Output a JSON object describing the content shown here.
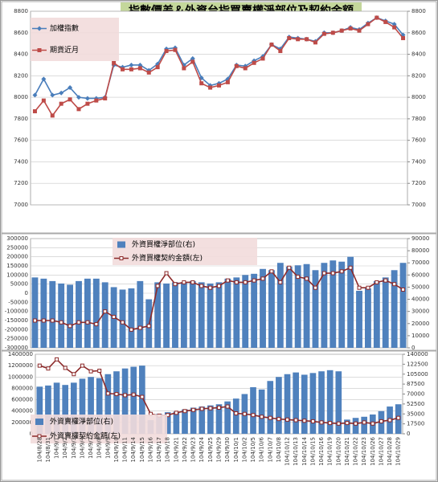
{
  "chart_data": [
    {
      "type": "line",
      "title": "指數價差＆外資台指買賣權淨部位及契約金額",
      "ylim": [
        7000,
        8800
      ],
      "yticks": [
        7000,
        7200,
        7400,
        7600,
        7800,
        8000,
        8200,
        8400,
        8600,
        8800
      ],
      "y2lim": [
        7000,
        8800
      ],
      "y2ticks": [
        7000,
        7200,
        7400,
        7600,
        7800,
        8000,
        8200,
        8400,
        8600,
        8800
      ],
      "grid": true,
      "series": [
        {
          "name": "加權指數",
          "color": "#4a7ebb",
          "marker": "diamond",
          "values": [
            8020,
            8170,
            8020,
            8040,
            8090,
            8000,
            7990,
            7990,
            8000,
            8300,
            8280,
            8300,
            8300,
            8250,
            8310,
            8450,
            8460,
            8300,
            8360,
            8180,
            8110,
            8130,
            8170,
            8300,
            8290,
            8340,
            8380,
            8490,
            8450,
            8560,
            8550,
            8540,
            8520,
            8600,
            8600,
            8620,
            8650,
            8630,
            8690,
            8740,
            8710,
            8680,
            8580
          ]
        },
        {
          "name": "期貨近月",
          "color": "#be4b48",
          "marker": "square",
          "values": [
            7870,
            7970,
            7830,
            7940,
            7980,
            7890,
            7940,
            7970,
            7990,
            8320,
            8260,
            8260,
            8270,
            8230,
            8280,
            8430,
            8440,
            8270,
            8330,
            8130,
            8090,
            8110,
            8140,
            8290,
            8270,
            8320,
            8360,
            8490,
            8430,
            8550,
            8540,
            8540,
            8510,
            8590,
            8600,
            8620,
            8640,
            8620,
            8680,
            8740,
            8700,
            8650,
            8550
          ]
        }
      ]
    },
    {
      "type": "combo",
      "ylim": [
        -300000,
        300000
      ],
      "yticks": [
        -300000,
        -250000,
        -200000,
        -150000,
        -100000,
        -50000,
        0,
        50000,
        100000,
        150000,
        200000,
        250000,
        300000
      ],
      "y2lim": [
        0,
        90000
      ],
      "y2ticks": [
        0,
        10000,
        20000,
        30000,
        40000,
        50000,
        60000,
        70000,
        80000,
        90000
      ],
      "grid": true,
      "series": [
        {
          "name": "外資買權淨部位(右)",
          "type": "bar",
          "axis": "y2",
          "color": "#4f81bd",
          "values": [
            58000,
            57000,
            55000,
            53000,
            52000,
            55000,
            57000,
            57000,
            54000,
            50000,
            48000,
            49000,
            55000,
            40000,
            54000,
            53000,
            54000,
            54000,
            55000,
            54000,
            53000,
            54000,
            57000,
            58000,
            60000,
            61000,
            65000,
            64000,
            70000,
            67000,
            68000,
            69000,
            64000,
            70000,
            72000,
            71000,
            75000,
            47000,
            49000,
            55000,
            58000,
            64000,
            70000
          ]
        },
        {
          "name": "外資買權契約金額(左)",
          "type": "line",
          "color": "#8c2a2a",
          "marker": "open-square",
          "values": [
            -150000,
            -150000,
            -150000,
            -160000,
            -180000,
            -160000,
            -160000,
            -170000,
            -100000,
            -130000,
            -160000,
            -200000,
            -190000,
            -180000,
            40000,
            110000,
            50000,
            60000,
            60000,
            40000,
            30000,
            40000,
            70000,
            60000,
            60000,
            70000,
            80000,
            120000,
            60000,
            140000,
            90000,
            80000,
            30000,
            110000,
            110000,
            120000,
            140000,
            30000,
            30000,
            60000,
            70000,
            50000,
            20000
          ]
        }
      ]
    },
    {
      "type": "combo",
      "ylim": [
        0,
        1400000
      ],
      "yticks": [
        0,
        200000,
        400000,
        600000,
        800000,
        1000000,
        1200000,
        1400000
      ],
      "y2lim": [
        0,
        140000
      ],
      "y2ticks": [
        0,
        17500,
        35000,
        52500,
        70000,
        87500,
        105000,
        122500,
        140000
      ],
      "grid": true,
      "categories": [
        "104/8/28",
        "104/8/31",
        "104/9/1",
        "104/9/2",
        "104/9/3",
        "104/9/4",
        "104/9/7",
        "104/9/8",
        "104/9/9",
        "104/9/10",
        "104/9/11",
        "104/9/14",
        "104/9/15",
        "104/9/16",
        "104/9/17",
        "104/9/18",
        "104/9/21",
        "104/9/22",
        "104/9/23",
        "104/9/24",
        "104/9/25",
        "104/9/29",
        "104/9/30",
        "104/10/1",
        "104/10/2",
        "104/10/5",
        "104/10/6",
        "104/10/7",
        "104/10/8",
        "104/10/12",
        "104/10/13",
        "104/10/14",
        "104/10/15",
        "104/10/16",
        "104/10/19",
        "104/10/20",
        "104/10/21",
        "104/10/22",
        "104/10/23",
        "104/10/26",
        "104/10/27",
        "104/10/28",
        "104/10/29"
      ],
      "series": [
        {
          "name": "外資賣權淨部位(右)",
          "type": "bar",
          "axis": "y2",
          "color": "#4f81bd",
          "values": [
            83000,
            85000,
            90000,
            86000,
            90000,
            97000,
            100000,
            98000,
            105000,
            110000,
            115000,
            118000,
            120000,
            24000,
            35000,
            38000,
            39000,
            43000,
            46000,
            48000,
            50000,
            52000,
            57000,
            62000,
            70000,
            82000,
            78000,
            93000,
            100000,
            105000,
            108000,
            104000,
            107000,
            110000,
            112000,
            110000,
            25000,
            28000,
            30000,
            34000,
            40000,
            48000,
            52000
          ]
        },
        {
          "name": "外資賣權契約金額(左)",
          "type": "line",
          "color": "#8c2a2a",
          "marker": "open-square",
          "values": [
            1200000,
            1150000,
            1310000,
            1160000,
            1050000,
            1200000,
            1100000,
            1110000,
            710000,
            700000,
            680000,
            690000,
            650000,
            350000,
            320000,
            330000,
            370000,
            400000,
            420000,
            440000,
            450000,
            460000,
            480000,
            360000,
            350000,
            330000,
            300000,
            280000,
            260000,
            250000,
            240000,
            230000,
            220000,
            200000,
            190000,
            180000,
            190000,
            180000,
            200000,
            180000,
            220000,
            240000,
            280000
          ]
        }
      ]
    }
  ]
}
